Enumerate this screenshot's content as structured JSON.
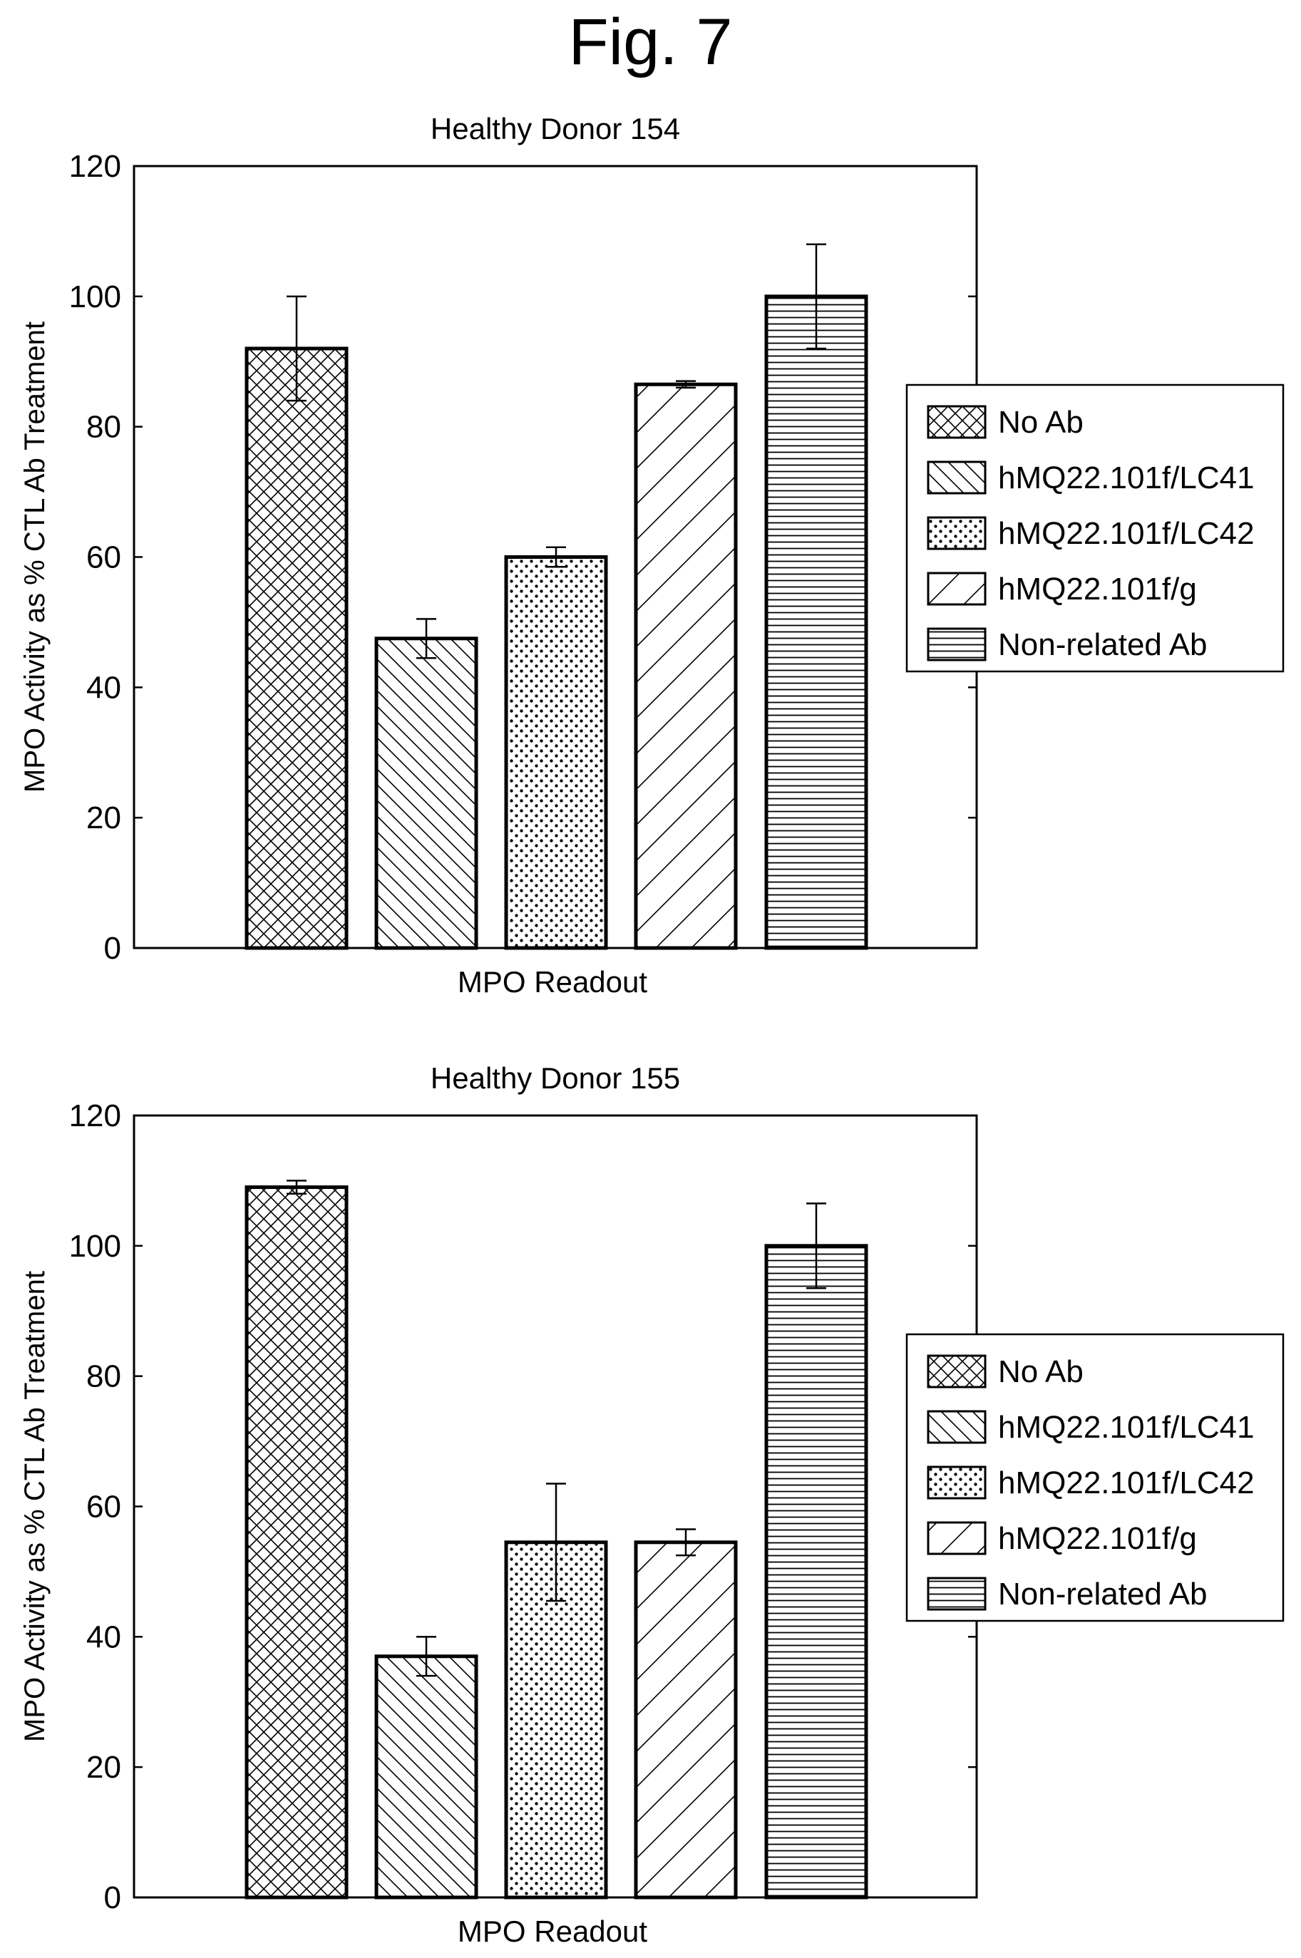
{
  "figure_title": "Fig. 7",
  "colors": {
    "ink": "#000000",
    "bar_fill": "#ffffff",
    "background": "#ffffff"
  },
  "legend_entries": [
    {
      "label": "No Ab",
      "pattern": "crosshatch"
    },
    {
      "label": "hMQ22.101f/LC41",
      "pattern": "back-diagonal"
    },
    {
      "label": "hMQ22.101f/LC42",
      "pattern": "dots"
    },
    {
      "label": "hMQ22.101f/g",
      "pattern": "wide-forward-diagonal"
    },
    {
      "label": "Non-related Ab",
      "pattern": "horizontal-lines"
    }
  ],
  "chart_data": [
    {
      "type": "bar",
      "title": "Healthy Donor 154",
      "xlabel": "MPO Readout",
      "ylabel": "MPO Activity as % CTL Ab Treatment",
      "ylim": [
        0,
        120
      ],
      "yticks": [
        0,
        20,
        40,
        60,
        80,
        100,
        120
      ],
      "categories": [
        "MPO Readout"
      ],
      "legend_position": "right",
      "series": [
        {
          "name": "No Ab",
          "values": [
            92
          ],
          "error": [
            8
          ]
        },
        {
          "name": "hMQ22.101f/LC41",
          "values": [
            47.5
          ],
          "error": [
            3
          ]
        },
        {
          "name": "hMQ22.101f/LC42",
          "values": [
            60
          ],
          "error": [
            1.5
          ]
        },
        {
          "name": "hMQ22.101f/g",
          "values": [
            86.5
          ],
          "error": [
            0.5
          ]
        },
        {
          "name": "Non-related Ab",
          "values": [
            100
          ],
          "error": [
            8
          ]
        }
      ]
    },
    {
      "type": "bar",
      "title": "Healthy Donor 155",
      "xlabel": "MPO Readout",
      "ylabel": "MPO Activity as % CTL Ab Treatment",
      "ylim": [
        0,
        120
      ],
      "yticks": [
        0,
        20,
        40,
        60,
        80,
        100,
        120
      ],
      "categories": [
        "MPO Readout"
      ],
      "legend_position": "right",
      "series": [
        {
          "name": "No Ab",
          "values": [
            109
          ],
          "error": [
            1
          ]
        },
        {
          "name": "hMQ22.101f/LC41",
          "values": [
            37
          ],
          "error": [
            3
          ]
        },
        {
          "name": "hMQ22.101f/LC42",
          "values": [
            54.5
          ],
          "error": [
            9
          ]
        },
        {
          "name": "hMQ22.101f/g",
          "values": [
            54.5
          ],
          "error": [
            2
          ]
        },
        {
          "name": "Non-related Ab",
          "values": [
            100
          ],
          "error": [
            6.5
          ]
        }
      ]
    }
  ]
}
